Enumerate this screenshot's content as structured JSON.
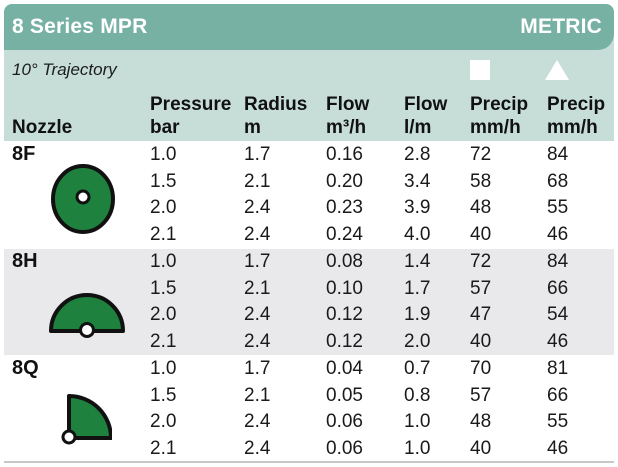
{
  "header": {
    "title": "8 Series MPR",
    "metric_label": "METRIC"
  },
  "subheader": {
    "trajectory": "10° Trajectory",
    "columns": [
      {
        "line1": "",
        "line2": "Nozzle"
      },
      {
        "line1": "Pressure",
        "line2": "bar"
      },
      {
        "line1": "Radius",
        "line2": "m"
      },
      {
        "line1": "Flow",
        "line2": "m³/h"
      },
      {
        "line1": "Flow",
        "line2": "l/m"
      },
      {
        "line1": "Precip",
        "line2": "mm/h",
        "icon": "square-icon"
      },
      {
        "line1": "Precip",
        "line2": "mm/h",
        "icon": "triangle-icon"
      }
    ]
  },
  "sections": [
    {
      "nozzle": "8F",
      "pattern": "full-circle-icon",
      "rows": [
        [
          "1.0",
          "1.7",
          "0.16",
          "2.8",
          "72",
          "84"
        ],
        [
          "1.5",
          "2.1",
          "0.20",
          "3.4",
          "58",
          "68"
        ],
        [
          "2.0",
          "2.4",
          "0.23",
          "3.9",
          "48",
          "55"
        ],
        [
          "2.1",
          "2.4",
          "0.24",
          "4.0",
          "40",
          "46"
        ]
      ]
    },
    {
      "nozzle": "8H",
      "pattern": "half-circle-icon",
      "rows": [
        [
          "1.0",
          "1.7",
          "0.08",
          "1.4",
          "72",
          "84"
        ],
        [
          "1.5",
          "2.1",
          "0.10",
          "1.7",
          "57",
          "66"
        ],
        [
          "2.0",
          "2.4",
          "0.12",
          "1.9",
          "47",
          "54"
        ],
        [
          "2.1",
          "2.4",
          "0.12",
          "2.0",
          "40",
          "46"
        ]
      ]
    },
    {
      "nozzle": "8Q",
      "pattern": "quarter-circle-icon",
      "rows": [
        [
          "1.0",
          "1.7",
          "0.04",
          "0.7",
          "70",
          "81"
        ],
        [
          "1.5",
          "2.1",
          "0.05",
          "0.8",
          "57",
          "66"
        ],
        [
          "2.0",
          "2.4",
          "0.06",
          "1.0",
          "48",
          "55"
        ],
        [
          "2.1",
          "2.4",
          "0.06",
          "1.0",
          "40",
          "46"
        ]
      ]
    }
  ],
  "colors": {
    "bar_green": "#76b1a3",
    "light_green": "#c7ded8",
    "band_gray": "#e9e9eb",
    "icon_green": "#1e813e",
    "text": "#1a1a1a"
  }
}
